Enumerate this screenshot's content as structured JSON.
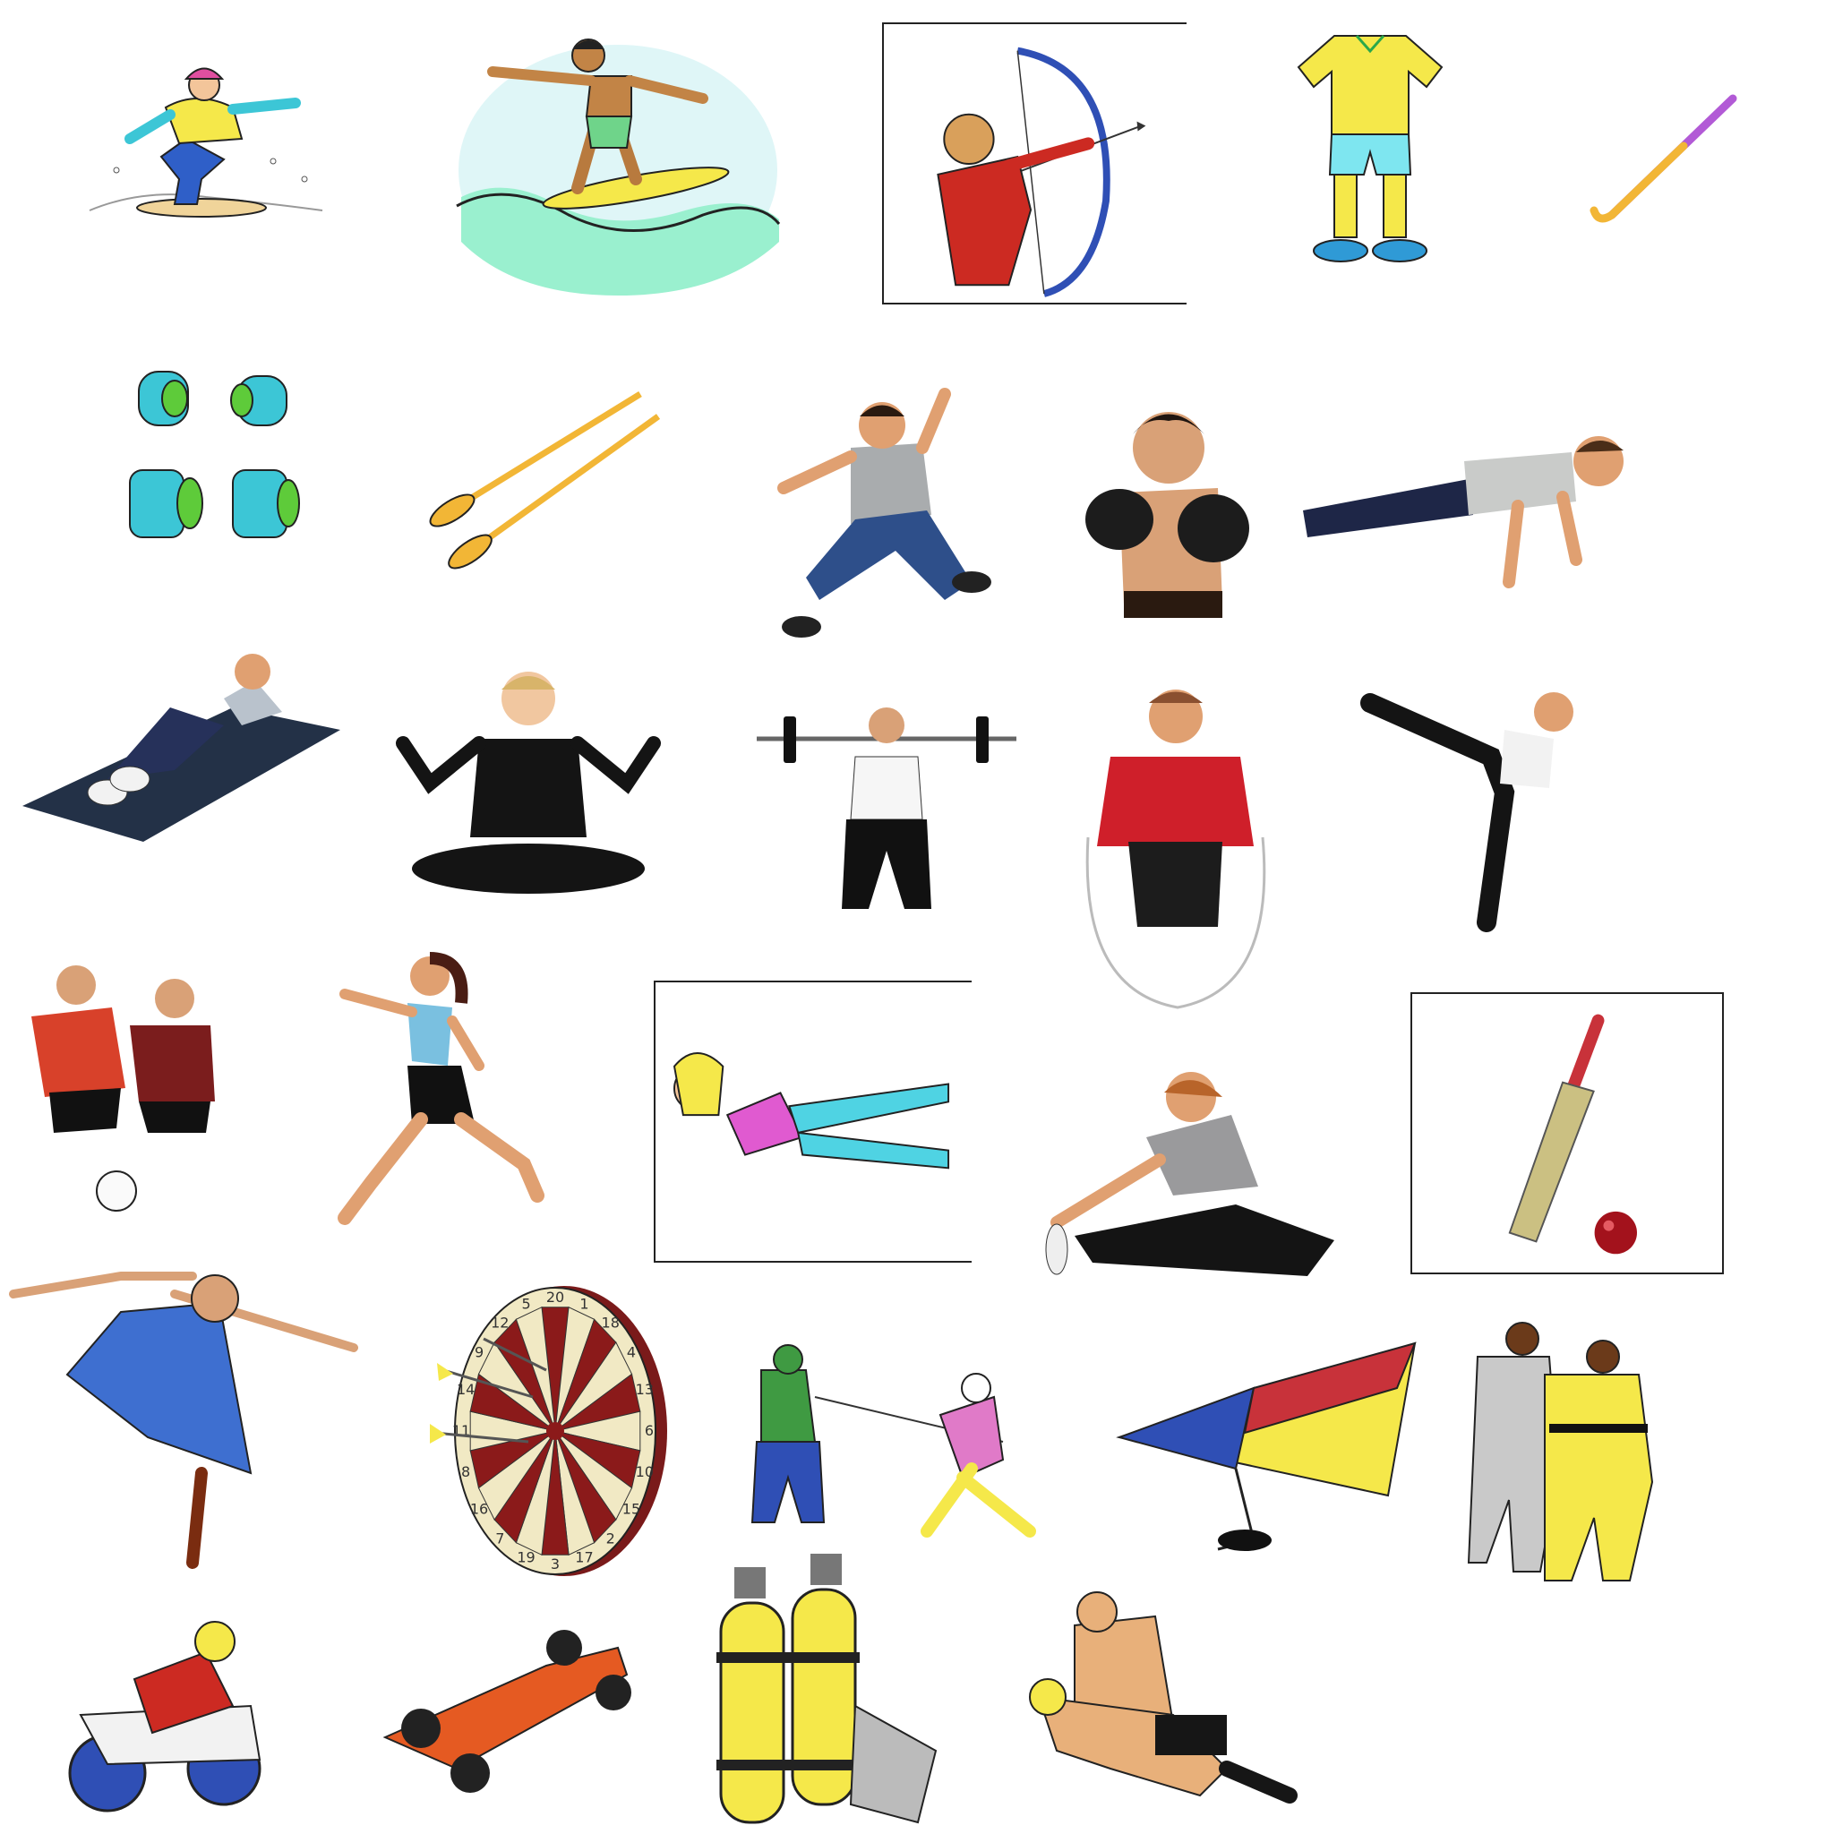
{
  "sheet": {
    "background": "#ffffff",
    "rows": [
      [
        "snowboarding-icon",
        "surfing-icon",
        "archery-icon",
        "football-kit-icon",
        "hockey-stick-icon"
      ],
      [
        "armbands-icon",
        "oars-icon",
        "jumping-man-icon",
        "boxer-icon",
        "push-up-icon"
      ],
      [
        "sit-up-icon",
        "yoga-icon",
        "weightlifting-icon",
        "skipping-rope-icon",
        "high-kick-icon"
      ],
      [
        "football-players-icon",
        "running-icon",
        "leg-raise-icon",
        "stretching-icon",
        "cricket-bat-icon"
      ],
      [
        "dancer-icon",
        "dartboard-icon",
        "fencing-icon",
        "hang-glider-icon",
        "judo-icon"
      ],
      [
        "motorbike-icon",
        "racing-car-icon",
        "scuba-tanks-icon",
        "wrestling-icon"
      ]
    ]
  },
  "dartboard": {
    "numbers": [
      "20",
      "1",
      "18",
      "4",
      "13",
      "6",
      "10",
      "15",
      "2",
      "17",
      "3",
      "19",
      "7",
      "16",
      "8",
      "11",
      "14",
      "9",
      "12",
      "5"
    ]
  },
  "colors": {
    "ink": "#1a1a1a",
    "yellow": "#f5e84a",
    "gold": "#f2b636",
    "cyan": "#3cc6d6",
    "green": "#5ecb3a",
    "blue": "#2f4fb5",
    "red": "#cc2a22",
    "skin": "#e8b07a",
    "navy": "#22305e",
    "black": "#161616",
    "grey": "#b9bcbf",
    "dart_red": "#8b1a1a",
    "dart_cream": "#f1e9c4"
  }
}
